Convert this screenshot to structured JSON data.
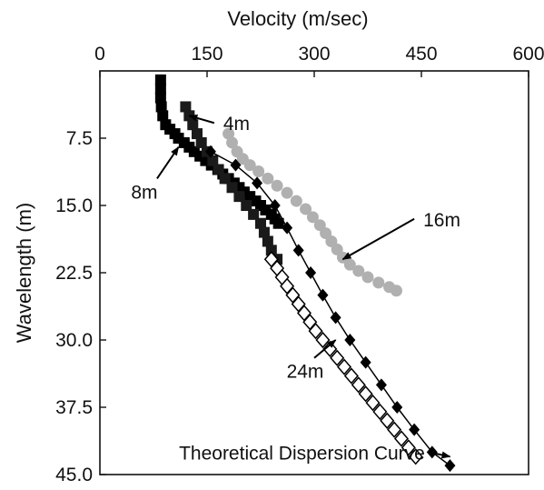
{
  "chart_data": {
    "type": "scatter",
    "title": "",
    "xlabel": "Velocity (m/sec)",
    "ylabel": "Wavelength (m)",
    "x_axis_position": "top",
    "y_axis_inverted": true,
    "xlim": [
      0,
      600
    ],
    "ylim": [
      0,
      45
    ],
    "xticks": [
      "0",
      "150",
      "300",
      "450",
      "600"
    ],
    "yticks": [
      "7.5",
      "15.0",
      "22.5",
      "30.0",
      "37.5",
      "45.0"
    ],
    "grid": false,
    "series": [
      {
        "name": "4m",
        "marker": "filled-square",
        "color": "#000000",
        "points": [
          [
            85,
            1
          ],
          [
            85,
            2
          ],
          [
            85,
            3
          ],
          [
            86,
            4
          ],
          [
            88,
            5
          ],
          [
            92,
            6
          ],
          [
            98,
            6.5
          ],
          [
            105,
            7
          ],
          [
            110,
            7.5
          ],
          [
            118,
            8
          ],
          [
            125,
            8.5
          ],
          [
            132,
            9
          ],
          [
            140,
            9.5
          ],
          [
            148,
            10
          ],
          [
            156,
            10.5
          ],
          [
            165,
            11
          ],
          [
            172,
            11.5
          ],
          [
            180,
            12
          ],
          [
            188,
            12.5
          ],
          [
            195,
            13
          ],
          [
            202,
            13.5
          ],
          [
            210,
            14
          ],
          [
            218,
            14.5
          ],
          [
            225,
            15
          ],
          [
            232,
            15.5
          ],
          [
            240,
            16
          ],
          [
            245,
            16.5
          ],
          [
            250,
            17
          ]
        ]
      },
      {
        "name": "8m",
        "marker": "filled-square",
        "color": "#1a1a1a",
        "points": [
          [
            120,
            4
          ],
          [
            125,
            5
          ],
          [
            130,
            6
          ],
          [
            136,
            7
          ],
          [
            142,
            8
          ],
          [
            150,
            9
          ],
          [
            158,
            10
          ],
          [
            166,
            11
          ],
          [
            175,
            12
          ],
          [
            185,
            13
          ],
          [
            195,
            14
          ],
          [
            205,
            15
          ],
          [
            215,
            16
          ],
          [
            225,
            17
          ],
          [
            230,
            18
          ],
          [
            235,
            19
          ],
          [
            240,
            20
          ],
          [
            248,
            21
          ]
        ]
      },
      {
        "name": "16m",
        "marker": "filled-circle",
        "color": "#b0b0b0",
        "points": [
          [
            180,
            7
          ],
          [
            185,
            8
          ],
          [
            192,
            9
          ],
          [
            200,
            9.8
          ],
          [
            210,
            10.5
          ],
          [
            222,
            11.2
          ],
          [
            235,
            12
          ],
          [
            248,
            12.8
          ],
          [
            262,
            13.6
          ],
          [
            275,
            14.5
          ],
          [
            288,
            15.4
          ],
          [
            298,
            16.3
          ],
          [
            308,
            17.2
          ],
          [
            316,
            18.1
          ],
          [
            324,
            19
          ],
          [
            332,
            19.9
          ],
          [
            340,
            20.8
          ],
          [
            350,
            21.6
          ],
          [
            362,
            22.3
          ],
          [
            375,
            23
          ],
          [
            390,
            23.6
          ],
          [
            405,
            24.1
          ],
          [
            415,
            24.5
          ]
        ]
      },
      {
        "name": "24m",
        "marker": "open-diamond",
        "color": "#000000",
        "points": [
          [
            240,
            21
          ],
          [
            248,
            22
          ],
          [
            255,
            23
          ],
          [
            262,
            24
          ],
          [
            270,
            25
          ],
          [
            278,
            26
          ],
          [
            286,
            27
          ],
          [
            294,
            28
          ],
          [
            302,
            29
          ],
          [
            312,
            30
          ],
          [
            322,
            31
          ],
          [
            332,
            32
          ],
          [
            342,
            33
          ],
          [
            352,
            34
          ],
          [
            362,
            35
          ],
          [
            372,
            36
          ],
          [
            382,
            37
          ],
          [
            392,
            38
          ],
          [
            402,
            39
          ],
          [
            412,
            40
          ],
          [
            422,
            41
          ],
          [
            432,
            42
          ],
          [
            442,
            43
          ]
        ]
      },
      {
        "name": "Theoretical Dispersion Curve",
        "marker": "filled-diamond",
        "color": "#000000",
        "points": [
          [
            155,
            9
          ],
          [
            190,
            10.5
          ],
          [
            220,
            12.5
          ],
          [
            245,
            15
          ],
          [
            262,
            17.5
          ],
          [
            278,
            20
          ],
          [
            295,
            22.5
          ],
          [
            312,
            25
          ],
          [
            330,
            27.5
          ],
          [
            350,
            30
          ],
          [
            372,
            32.5
          ],
          [
            394,
            35
          ],
          [
            416,
            37.5
          ],
          [
            440,
            40
          ],
          [
            465,
            42.5
          ],
          [
            490,
            44
          ]
        ]
      }
    ],
    "annotations": [
      {
        "text": "4m",
        "arrow_from": [
          160,
          5.8
        ],
        "arrow_to": [
          125,
          5
        ]
      },
      {
        "text": "8m",
        "arrow_from": [
          80,
          12
        ],
        "arrow_to": [
          110,
          8.5
        ]
      },
      {
        "text": "16m",
        "arrow_from": [
          440,
          16.5
        ],
        "arrow_to": [
          340,
          21
        ]
      },
      {
        "text": "24m",
        "arrow_from": [
          300,
          32
        ],
        "arrow_to": [
          330,
          30
        ]
      },
      {
        "text": "Theoretical Dispersion Curve",
        "arrow_from": [
          460,
          42.5
        ],
        "arrow_to": [
          490,
          43
        ]
      }
    ]
  }
}
